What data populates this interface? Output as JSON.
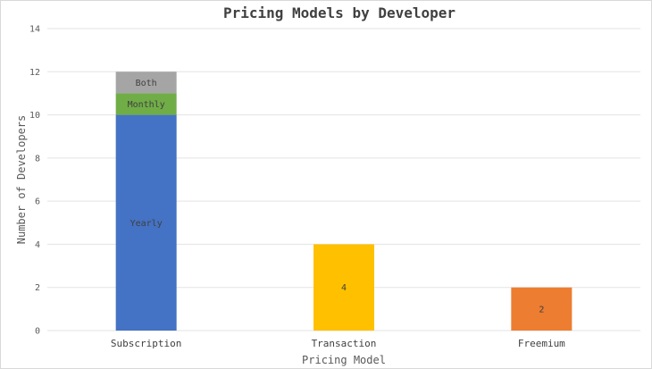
{
  "chart_data": {
    "type": "bar",
    "stacked": true,
    "title": "Pricing Models by Developer",
    "xlabel": "Pricing Model",
    "ylabel": "Number of Developers",
    "ylim": [
      0,
      14
    ],
    "yticks": [
      0,
      2,
      4,
      6,
      8,
      10,
      12,
      14
    ],
    "grid": true,
    "categories": [
      "Subscription",
      "Transaction",
      "Freemium"
    ],
    "bars": [
      {
        "category": "Subscription",
        "segments": [
          {
            "label": "Yearly",
            "value": 10,
            "color": "#4472C4"
          },
          {
            "label": "Monthly",
            "value": 1,
            "color": "#70AD47"
          },
          {
            "label": "Both",
            "value": 1,
            "color": "#A5A5A5"
          }
        ]
      },
      {
        "category": "Transaction",
        "segments": [
          {
            "label": "4",
            "value": 4,
            "color": "#FFC000"
          }
        ]
      },
      {
        "category": "Freemium",
        "segments": [
          {
            "label": "2",
            "value": 2,
            "color": "#ED7D31"
          }
        ]
      }
    ]
  }
}
